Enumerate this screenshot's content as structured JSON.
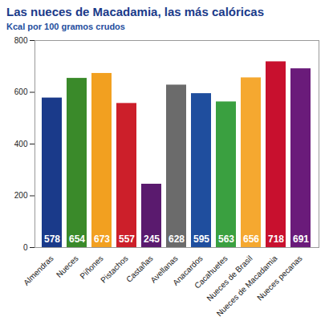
{
  "chart_data": {
    "type": "bar",
    "title": "Las nueces de Macadamia, las más calóricas",
    "subtitle": "Kcal por 100 gramos crudos",
    "categories": [
      "Almendras",
      "Nueces",
      "Piñones",
      "Pistachos",
      "Castañas",
      "Avellanas",
      "Anacardos",
      "Cacahuetes",
      "Nueces de Brasil",
      "Nueces de Macadamia",
      "Nueces pecanas"
    ],
    "values": [
      578,
      654,
      673,
      557,
      245,
      628,
      595,
      563,
      656,
      718,
      691
    ],
    "colors": [
      "#1a3a8a",
      "#3a8a2a",
      "#f2a020",
      "#cc1f2a",
      "#5a1a6e",
      "#6b6b6b",
      "#1f4e9e",
      "#3aa040",
      "#f5a830",
      "#c8102e",
      "#6a1b7a"
    ],
    "ylim": [
      0,
      800
    ],
    "yticks": [
      0,
      200,
      400,
      600,
      800
    ],
    "grid": false,
    "data_labels": true
  }
}
